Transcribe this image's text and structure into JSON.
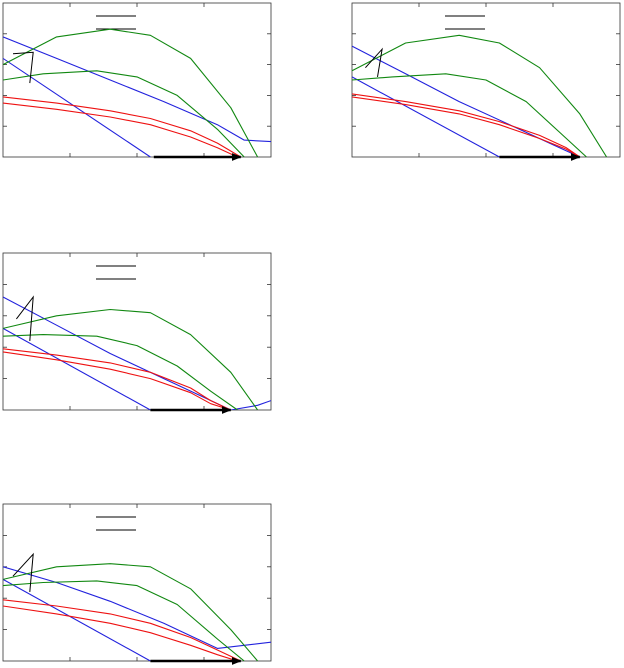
{
  "colors": {
    "blue": "#2222dd",
    "green": "#118811",
    "red": "#ee1111",
    "black": "#000000",
    "frame": "#333333"
  },
  "chart_data": [
    {
      "type": "line",
      "panel": "top-left",
      "xlim": [
        0,
        4
      ],
      "ylim": [
        0,
        5
      ],
      "grid": false,
      "legend": "top-center",
      "legend_entries": 2,
      "series": [
        {
          "color": "blue",
          "x": [
            0,
            2.2
          ],
          "y": [
            3.2,
            0
          ]
        },
        {
          "color": "blue",
          "x": [
            0,
            0.8,
            1.6,
            2.4,
            3.2,
            3.6,
            4.0
          ],
          "y": [
            3.9,
            3.2,
            2.5,
            1.8,
            1.05,
            0.55,
            0.5
          ]
        },
        {
          "color": "green",
          "x": [
            0,
            0.8,
            1.6,
            2.2,
            2.8,
            3.4,
            3.8
          ],
          "y": [
            3.0,
            3.9,
            4.15,
            3.95,
            3.2,
            1.6,
            0
          ]
        },
        {
          "color": "green",
          "x": [
            0,
            0.6,
            1.4,
            2.0,
            2.6,
            3.2,
            3.6
          ],
          "y": [
            2.5,
            2.7,
            2.8,
            2.6,
            2.0,
            0.9,
            0
          ]
        },
        {
          "color": "red",
          "x": [
            0,
            0.8,
            1.6,
            2.2,
            2.8,
            3.2,
            3.55
          ],
          "y": [
            1.95,
            1.75,
            1.5,
            1.25,
            0.85,
            0.45,
            0
          ]
        },
        {
          "color": "red",
          "x": [
            0,
            0.8,
            1.6,
            2.2,
            2.8,
            3.2,
            3.5
          ],
          "y": [
            1.75,
            1.55,
            1.3,
            1.05,
            0.65,
            0.3,
            0
          ]
        }
      ],
      "annotations": [
        {
          "shape": "arrow",
          "color": "black",
          "x": [
            2.25,
            3.55
          ],
          "y": [
            0,
            0
          ]
        },
        {
          "shape": "line",
          "color": "black",
          "x": [
            0.15,
            0.45,
            0.4
          ],
          "y": [
            3.35,
            3.4,
            2.4
          ]
        }
      ]
    },
    {
      "type": "line",
      "panel": "top-right",
      "xlim": [
        0,
        4
      ],
      "ylim": [
        0,
        5
      ],
      "grid": false,
      "legend": "top-center",
      "legend_entries": 2,
      "series": [
        {
          "color": "blue",
          "x": [
            0,
            2.2
          ],
          "y": [
            2.6,
            0
          ]
        },
        {
          "color": "blue",
          "x": [
            0,
            0.8,
            1.6,
            2.4,
            3.0,
            3.4
          ],
          "y": [
            3.6,
            2.7,
            1.8,
            1.0,
            0.4,
            0
          ]
        },
        {
          "color": "green",
          "x": [
            0,
            0.8,
            1.6,
            2.2,
            2.8,
            3.4,
            3.8
          ],
          "y": [
            2.8,
            3.7,
            3.95,
            3.7,
            2.9,
            1.4,
            0
          ]
        },
        {
          "color": "green",
          "x": [
            0,
            0.6,
            1.4,
            2.0,
            2.6,
            3.1,
            3.5
          ],
          "y": [
            2.5,
            2.6,
            2.7,
            2.5,
            1.8,
            0.8,
            0
          ]
        },
        {
          "color": "red",
          "x": [
            0,
            0.8,
            1.6,
            2.2,
            2.8,
            3.2,
            3.4
          ],
          "y": [
            2.05,
            1.8,
            1.5,
            1.15,
            0.7,
            0.3,
            0
          ]
        },
        {
          "color": "red",
          "x": [
            0,
            0.8,
            1.6,
            2.2,
            2.8,
            3.2,
            3.4
          ],
          "y": [
            1.95,
            1.7,
            1.4,
            1.05,
            0.6,
            0.25,
            0
          ]
        }
      ],
      "annotations": [
        {
          "shape": "arrow",
          "color": "black",
          "x": [
            2.2,
            3.4
          ],
          "y": [
            0,
            0
          ]
        },
        {
          "shape": "line",
          "color": "black",
          "x": [
            0.2,
            0.45,
            0.38
          ],
          "y": [
            2.9,
            3.5,
            2.6
          ]
        }
      ]
    },
    {
      "type": "line",
      "panel": "middle-left",
      "xlim": [
        0,
        4
      ],
      "ylim": [
        0,
        5
      ],
      "grid": false,
      "legend": "top-center",
      "legend_entries": 2,
      "series": [
        {
          "color": "blue",
          "x": [
            0,
            2.2
          ],
          "y": [
            2.6,
            0
          ]
        },
        {
          "color": "blue",
          "x": [
            0,
            0.8,
            1.6,
            2.4,
            3.0,
            3.4,
            3.8,
            4.0
          ],
          "y": [
            3.6,
            2.7,
            1.8,
            1.0,
            0.4,
            0,
            0.15,
            0.3
          ]
        },
        {
          "color": "green",
          "x": [
            0,
            0.8,
            1.6,
            2.2,
            2.8,
            3.4,
            3.8
          ],
          "y": [
            2.6,
            3.0,
            3.2,
            3.1,
            2.4,
            1.2,
            0
          ]
        },
        {
          "color": "green",
          "x": [
            0,
            0.6,
            1.4,
            2.0,
            2.6,
            3.1,
            3.5
          ],
          "y": [
            2.35,
            2.4,
            2.35,
            2.05,
            1.4,
            0.6,
            0
          ]
        },
        {
          "color": "red",
          "x": [
            0,
            0.8,
            1.6,
            2.2,
            2.8,
            3.1,
            3.4
          ],
          "y": [
            1.95,
            1.75,
            1.5,
            1.2,
            0.7,
            0.3,
            0
          ]
        },
        {
          "color": "red",
          "x": [
            0,
            0.8,
            1.6,
            2.2,
            2.8,
            3.1,
            3.4
          ],
          "y": [
            1.85,
            1.6,
            1.3,
            1.0,
            0.55,
            0.2,
            0
          ]
        }
      ],
      "annotations": [
        {
          "shape": "arrow",
          "color": "black",
          "x": [
            2.2,
            3.4
          ],
          "y": [
            0,
            0
          ]
        },
        {
          "shape": "line",
          "color": "black",
          "x": [
            0.2,
            0.45,
            0.4
          ],
          "y": [
            2.9,
            3.6,
            2.2
          ]
        }
      ]
    },
    {
      "type": "line",
      "panel": "bottom-left",
      "xlim": [
        0,
        4
      ],
      "ylim": [
        0,
        5
      ],
      "grid": false,
      "legend": "top-center",
      "legend_entries": 2,
      "series": [
        {
          "color": "blue",
          "x": [
            0,
            2.2
          ],
          "y": [
            2.6,
            0
          ]
        },
        {
          "color": "blue",
          "x": [
            0,
            0.8,
            1.6,
            2.4,
            3.2,
            3.6,
            4.0
          ],
          "y": [
            3.0,
            2.5,
            1.9,
            1.2,
            0.4,
            0.5,
            0.6
          ]
        },
        {
          "color": "green",
          "x": [
            0,
            0.8,
            1.6,
            2.2,
            2.8,
            3.4,
            3.8
          ],
          "y": [
            2.6,
            3.0,
            3.1,
            3.0,
            2.3,
            1.0,
            0
          ]
        },
        {
          "color": "green",
          "x": [
            0,
            0.6,
            1.4,
            2.0,
            2.6,
            3.2,
            3.6
          ],
          "y": [
            2.4,
            2.5,
            2.55,
            2.4,
            1.8,
            0.7,
            0
          ]
        },
        {
          "color": "red",
          "x": [
            0,
            0.8,
            1.6,
            2.2,
            2.8,
            3.2,
            3.55
          ],
          "y": [
            1.95,
            1.75,
            1.5,
            1.2,
            0.75,
            0.35,
            0
          ]
        },
        {
          "color": "red",
          "x": [
            0,
            0.8,
            1.6,
            2.2,
            2.8,
            3.2,
            3.5
          ],
          "y": [
            1.75,
            1.5,
            1.2,
            0.9,
            0.5,
            0.2,
            0
          ]
        }
      ],
      "annotations": [
        {
          "shape": "arrow",
          "color": "black",
          "x": [
            2.2,
            3.55
          ],
          "y": [
            0,
            0
          ]
        },
        {
          "shape": "line",
          "color": "black",
          "x": [
            0.15,
            0.45,
            0.4
          ],
          "y": [
            2.7,
            3.4,
            2.2
          ]
        }
      ]
    }
  ]
}
